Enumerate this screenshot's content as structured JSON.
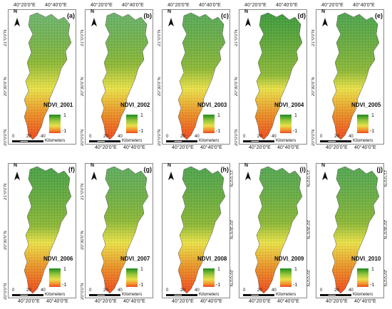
{
  "figure": {
    "panels": [
      {
        "letter": "(a)",
        "label": "NDVI_2001",
        "lon_ticks_top": [
          "40°20'0\"E",
          "40°40'0\"E"
        ],
        "lon_ticks_bottom": [],
        "lat_ticks_left": [
          "21°0'0\"N",
          "20°30'0\"N",
          "20°0'0\"N"
        ],
        "lat_ticks_right": [],
        "legend_max": "1",
        "legend_min": "-1",
        "scale_ticks": [
          "0",
          "20",
          "40"
        ],
        "scale_unit": "Kilometers",
        "greenness": 0.25
      },
      {
        "letter": "(b)",
        "label": "NDVI_2002",
        "lon_ticks_top": [
          "40°20'0\"E",
          "40°40'0\"E"
        ],
        "lon_ticks_bottom": [
          "40°20'0\"E",
          "40°40'0\"E"
        ],
        "lat_ticks_left": [
          "21°0'0\"N",
          "20°30'0\"N",
          "20°0'0\"N"
        ],
        "lat_ticks_right": [],
        "legend_max": "1",
        "legend_min": "-1",
        "scale_ticks": [
          "0",
          "20",
          "40"
        ],
        "scale_unit": "Kilometers",
        "greenness": 0.3
      },
      {
        "letter": "(c)",
        "label": "NDVI_2003",
        "lon_ticks_top": [
          "40°20'0\"E",
          "40°40'0\"E"
        ],
        "lon_ticks_bottom": [
          "40°20'0\"E",
          "40°40'0\"E"
        ],
        "lat_ticks_left": [
          "21°0'0\"N",
          "20°30'0\"N",
          "20°0'0\"N"
        ],
        "lat_ticks_right": [],
        "legend_max": "1",
        "legend_min": "-1",
        "scale_ticks": [
          "0",
          "20",
          "40"
        ],
        "scale_unit": "Kilometers",
        "greenness": 0.45
      },
      {
        "letter": "(d)",
        "label": "NDVI_2004",
        "lon_ticks_top": [
          "40°20'0\"E",
          "40°40'0\"E"
        ],
        "lon_ticks_bottom": [
          "40°20'0\"E",
          "40°40'0\"E"
        ],
        "lat_ticks_left": [
          "21°0'0\"N",
          "20°30'0\"N",
          "20°0'0\"N"
        ],
        "lat_ticks_right": [],
        "legend_max": "1",
        "legend_min": "-1",
        "scale_ticks": [
          "0",
          "20",
          "40"
        ],
        "scale_unit": "Kilometers",
        "greenness": 0.7
      },
      {
        "letter": "(e)",
        "label": "NDVI_2005",
        "lon_ticks_top": [
          "40°20'0\"E",
          "40°40'0\"E"
        ],
        "lon_ticks_bottom": [
          "40°20'0\"E",
          "40°40'0\"E"
        ],
        "lat_ticks_left": [
          "21°0'0\"N",
          "20°30'0\"N",
          "20°0'0\"N"
        ],
        "lat_ticks_right": [],
        "legend_max": "1",
        "legend_min": "-1",
        "scale_ticks": [
          "0",
          "20",
          "40"
        ],
        "scale_unit": "Kilometers",
        "greenness": 0.55
      },
      {
        "letter": "(f)",
        "label": "NDVI_2006",
        "lon_ticks_top": [],
        "lon_ticks_bottom": [
          "40°20'0\"E",
          "40°40'0\"E"
        ],
        "lat_ticks_left": [
          "21°0'0\"N",
          "20°30'0\"N",
          "20°0'0\"N"
        ],
        "lat_ticks_right": [],
        "legend_max": "1",
        "legend_min": "-1",
        "scale_ticks": [
          "0",
          "20",
          "40"
        ],
        "scale_unit": "Kilometers",
        "greenness": 0.6
      },
      {
        "letter": "(g)",
        "label": "NDVI_2007",
        "lon_ticks_top": [],
        "lon_ticks_bottom": [
          "40°20'0\"E",
          "40°40'0\"E"
        ],
        "lat_ticks_left": [
          "21°0'0\"N",
          "20°30'0\"N",
          "20°0'0\"N"
        ],
        "lat_ticks_right": [],
        "legend_max": "1",
        "legend_min": "-1",
        "scale_ticks": [
          "0",
          "20",
          "40"
        ],
        "scale_unit": "Kilometers",
        "greenness": 0.4
      },
      {
        "letter": "(h)",
        "label": "NDVI_2008",
        "lon_ticks_top": [],
        "lon_ticks_bottom": [
          "40°20'0\"E",
          "40°40'0\"E"
        ],
        "lat_ticks_left": [],
        "lat_ticks_right": [
          "21°0'0\"N",
          "20°30'0\"N",
          "20°0'0\"N"
        ],
        "legend_max": "1",
        "legend_min": "-1",
        "scale_ticks": [
          "0",
          "20",
          "40"
        ],
        "scale_unit": "Kilometers",
        "greenness": 0.55
      },
      {
        "letter": "(i)",
        "label": "NDVI_2009",
        "lon_ticks_top": [],
        "lon_ticks_bottom": [
          "40°20'0\"E",
          "40°40'0\"E"
        ],
        "lat_ticks_left": [],
        "lat_ticks_right": [
          "21°0'0\"N",
          "20°30'0\"N",
          "20°0'0\"N"
        ],
        "legend_max": "1",
        "legend_min": "-1",
        "scale_ticks": [
          "0",
          "20",
          "40"
        ],
        "scale_unit": "Kilometers",
        "greenness": 0.5
      },
      {
        "letter": "(j)",
        "label": "NDVI_2010",
        "lon_ticks_top": [],
        "lon_ticks_bottom": [
          "40°20'0\"E",
          "40°40'0\"E"
        ],
        "lat_ticks_left": [],
        "lat_ticks_right": [
          "21°0'0\"N",
          "20°30'0\"N",
          "20°0'0\"N"
        ],
        "legend_max": "1",
        "legend_min": "-1",
        "scale_ticks": [
          "0",
          "20",
          "40"
        ],
        "scale_unit": "Kilometers",
        "greenness": 0.5
      }
    ],
    "north_label": "N",
    "colors": {
      "high": "#1f8a1f",
      "mid": "#e8e04a",
      "low": "#ee4a1f"
    }
  }
}
